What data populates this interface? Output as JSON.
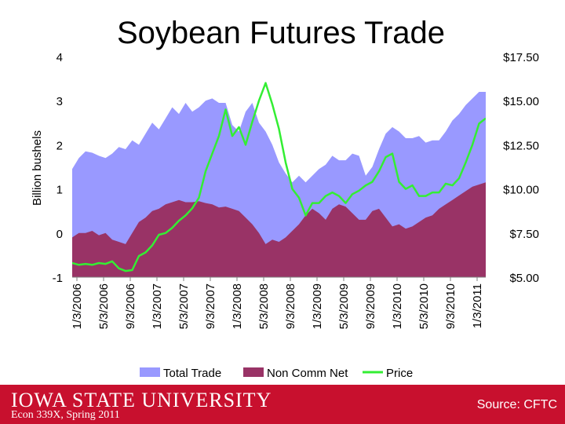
{
  "slide": {
    "title": "Soybean Futures Trade",
    "footer_logo": "IOWA STATE UNIVERSITY",
    "footer_course": "Econ 339X, Spring 2011",
    "source": "Source: CFTC"
  },
  "chart_data": {
    "type": "area",
    "ylabel": "Billion bushels",
    "ylim": [
      -1,
      4
    ],
    "yticks": [
      -1,
      0,
      1,
      2,
      3,
      4
    ],
    "y2lim": [
      5.0,
      17.5
    ],
    "y2ticks": [
      "$5.00",
      "$7.50",
      "$10.00",
      "$12.50",
      "$15.00",
      "$17.50"
    ],
    "y2tick_values": [
      5.0,
      7.5,
      10.0,
      12.5,
      15.0,
      17.5
    ],
    "categories": [
      "1/3/2006",
      "5/3/2006",
      "9/3/2006",
      "1/3/2007",
      "5/3/2007",
      "9/3/2007",
      "1/3/2008",
      "5/3/2008",
      "9/3/2008",
      "1/3/2009",
      "5/3/2009",
      "9/3/2009",
      "1/3/2010",
      "5/3/2010",
      "9/3/2010",
      "1/3/2011"
    ],
    "x": [
      0,
      0.25,
      0.5,
      0.75,
      1,
      1.25,
      1.5,
      1.75,
      2,
      2.25,
      2.5,
      2.75,
      3,
      3.25,
      3.5,
      3.75,
      4,
      4.25,
      4.5,
      4.75,
      5,
      5.25,
      5.5,
      5.75,
      6,
      6.25,
      6.5,
      6.75,
      7,
      7.25,
      7.5,
      7.75,
      8,
      8.25,
      8.5,
      8.75,
      9,
      9.25,
      9.5,
      9.75,
      10,
      10.25,
      10.5,
      10.75,
      11,
      11.25,
      11.5,
      11.75,
      12,
      12.25,
      12.5,
      12.75,
      13,
      13.25,
      13.5,
      13.75,
      14,
      14.25,
      14.5,
      14.75,
      15,
      15.25,
      15.5
    ],
    "series": [
      {
        "name": "Total Trade",
        "axis": "left",
        "color": "#9999ff",
        "values": [
          1.45,
          1.7,
          1.85,
          1.82,
          1.75,
          1.7,
          1.8,
          1.95,
          1.9,
          2.1,
          2.0,
          2.25,
          2.5,
          2.35,
          2.6,
          2.85,
          2.7,
          2.95,
          2.75,
          2.85,
          3.0,
          3.05,
          2.95,
          2.95,
          2.45,
          2.3,
          2.75,
          2.95,
          2.5,
          2.3,
          2.0,
          1.6,
          1.35,
          1.15,
          1.3,
          1.15,
          1.3,
          1.45,
          1.55,
          1.75,
          1.65,
          1.65,
          1.8,
          1.75,
          1.3,
          1.5,
          1.9,
          2.25,
          2.4,
          2.3,
          2.15,
          2.15,
          2.2,
          2.05,
          2.1,
          2.1,
          2.3,
          2.55,
          2.7,
          2.9,
          3.05,
          3.2,
          3.2
        ]
      },
      {
        "name": "Non Comm Net",
        "axis": "left",
        "color": "#993366",
        "values": [
          -0.1,
          0.0,
          0.0,
          0.05,
          -0.05,
          0.0,
          -0.15,
          -0.2,
          -0.25,
          0.0,
          0.25,
          0.35,
          0.5,
          0.55,
          0.65,
          0.7,
          0.75,
          0.7,
          0.7,
          0.72,
          0.68,
          0.65,
          0.58,
          0.6,
          0.55,
          0.5,
          0.35,
          0.2,
          0.0,
          -0.25,
          -0.15,
          -0.2,
          -0.1,
          0.05,
          0.2,
          0.4,
          0.55,
          0.45,
          0.3,
          0.55,
          0.65,
          0.6,
          0.45,
          0.3,
          0.3,
          0.5,
          0.55,
          0.35,
          0.15,
          0.2,
          0.1,
          0.15,
          0.25,
          0.35,
          0.4,
          0.55,
          0.65,
          0.75,
          0.85,
          0.95,
          1.05,
          1.1,
          1.15
        ]
      },
      {
        "name": "Price",
        "axis": "right",
        "color": "#33ee33",
        "values": [
          5.8,
          5.7,
          5.75,
          5.7,
          5.8,
          5.75,
          5.9,
          5.5,
          5.35,
          5.4,
          6.2,
          6.4,
          6.8,
          7.4,
          7.5,
          7.8,
          8.2,
          8.5,
          8.9,
          9.5,
          11.0,
          12.0,
          13.0,
          14.5,
          13.0,
          13.5,
          12.5,
          13.8,
          15.0,
          16.0,
          14.8,
          13.4,
          11.5,
          10.0,
          9.5,
          8.5,
          9.2,
          9.2,
          9.6,
          9.8,
          9.6,
          9.2,
          9.7,
          9.9,
          10.2,
          10.4,
          11.0,
          11.8,
          12.0,
          10.4,
          10.0,
          10.2,
          9.6,
          9.6,
          9.8,
          9.8,
          10.3,
          10.2,
          10.6,
          11.5,
          12.5,
          13.7,
          14.0
        ]
      }
    ],
    "legend": {
      "position": "bottom",
      "items": [
        "Total Trade",
        "Non Comm Net",
        "Price"
      ]
    },
    "grid": false
  }
}
